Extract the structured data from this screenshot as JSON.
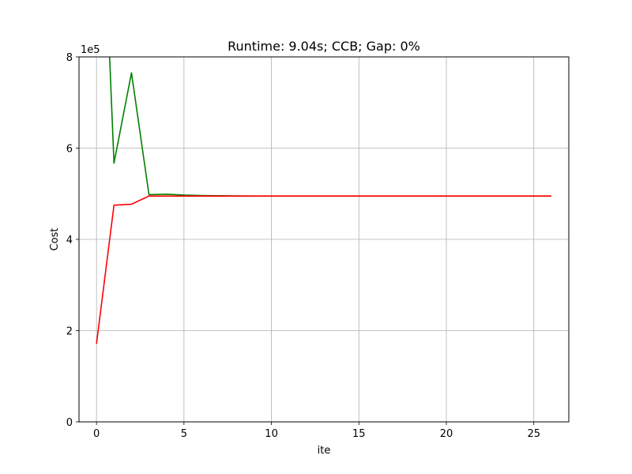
{
  "chart_data": {
    "type": "line",
    "title": "Runtime: 9.04s; CCB; Gap: 0%",
    "xlabel": "ite",
    "ylabel": "Cost",
    "y_offset_label": "1e5",
    "xlim": [
      -1,
      27
    ],
    "ylim": [
      0,
      800000
    ],
    "xticks": [
      0,
      5,
      10,
      15,
      20,
      25
    ],
    "yticks": [
      0,
      200000,
      400000,
      600000,
      800000
    ],
    "ytick_labels": [
      "0",
      "2",
      "4",
      "6",
      "8"
    ],
    "grid": true,
    "series": [
      {
        "color": "#008000",
        "x": [
          0,
          1,
          2,
          3,
          4,
          5,
          6,
          7,
          8,
          9,
          10,
          11,
          12,
          13,
          14,
          15,
          16,
          17,
          18,
          19,
          20,
          21,
          22,
          23,
          24,
          25,
          26
        ],
        "y": [
          1500000,
          567000,
          765000,
          498000,
          499000,
          497000,
          496000,
          495500,
          495200,
          495000,
          495000,
          495000,
          495000,
          495000,
          495000,
          495000,
          495000,
          495000,
          495000,
          495000,
          495000,
          495000,
          495000,
          495000,
          495000,
          495000,
          495000
        ]
      },
      {
        "color": "#ff0000",
        "x": [
          0,
          1,
          2,
          3,
          4,
          5,
          6,
          7,
          8,
          9,
          10,
          11,
          12,
          13,
          14,
          15,
          16,
          17,
          18,
          19,
          20,
          21,
          22,
          23,
          24,
          25,
          26
        ],
        "y": [
          171000,
          475000,
          477000,
          495000,
          495000,
          495000,
          495000,
          495000,
          495000,
          495000,
          495000,
          495000,
          495000,
          495000,
          495000,
          495000,
          495000,
          495000,
          495000,
          495000,
          495000,
          495000,
          495000,
          495000,
          495000,
          495000,
          495000
        ]
      }
    ]
  }
}
